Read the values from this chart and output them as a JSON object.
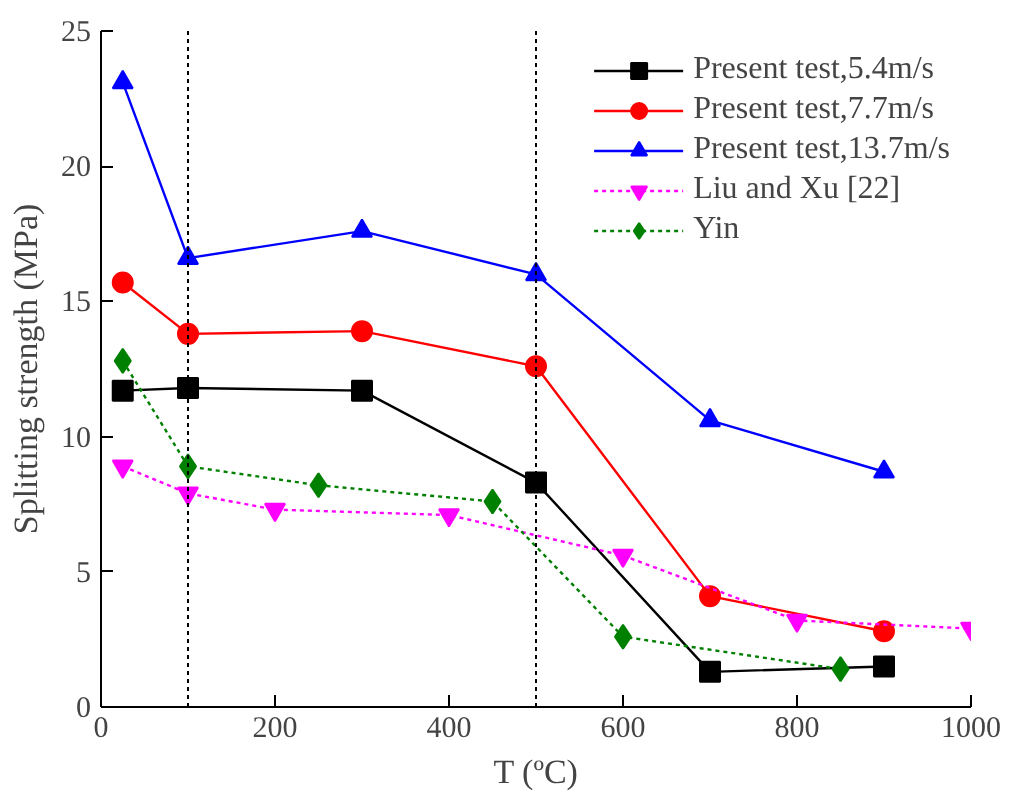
{
  "chart_data": {
    "type": "line",
    "xlabel": "T (ºC)",
    "ylabel": "Splitting strength (MPa)",
    "xlim": [
      0,
      1000
    ],
    "ylim": [
      0,
      25
    ],
    "xticks": [
      0,
      200,
      400,
      600,
      800,
      1000
    ],
    "yticks": [
      0,
      5,
      10,
      15,
      20,
      25
    ],
    "grid": false,
    "legend": "top right",
    "ref_lines": [
      {
        "axis": "x",
        "value": 100,
        "color": "#000000",
        "line_style": "dotted"
      },
      {
        "axis": "x",
        "value": 500,
        "color": "#000000",
        "line_style": "dotted"
      }
    ],
    "series": [
      {
        "name": "Present test,5.4m/s",
        "color": "#000000",
        "marker": "square",
        "line_style": "solid",
        "x": [
          25,
          100,
          300,
          500,
          700,
          900
        ],
        "values": [
          11.7,
          11.8,
          11.7,
          8.3,
          1.3,
          1.5
        ]
      },
      {
        "name": "Present test,7.7m/s",
        "color": "#ff0000",
        "marker": "circle",
        "line_style": "solid",
        "x": [
          25,
          100,
          300,
          500,
          700,
          900
        ],
        "values": [
          15.7,
          13.8,
          13.9,
          12.6,
          4.1,
          2.8
        ]
      },
      {
        "name": "Present test,13.7m/s",
        "color": "#0000ff",
        "marker": "triangle",
        "line_style": "solid",
        "x": [
          25,
          100,
          300,
          500,
          700,
          900
        ],
        "values": [
          23.1,
          16.6,
          17.6,
          16.0,
          10.6,
          8.7
        ]
      },
      {
        "name": "Liu and Xu [22]",
        "color": "#ff00ff",
        "marker": "triangle",
        "line_style": "dotted",
        "x": [
          25,
          100,
          200,
          400,
          600,
          800,
          1000
        ],
        "values": [
          8.9,
          7.9,
          7.3,
          7.1,
          5.6,
          3.2,
          2.9
        ]
      },
      {
        "name": "Yin",
        "color": "#008000",
        "marker": "diamond",
        "line_style": "dotted",
        "x": [
          25,
          100,
          250,
          450,
          600,
          850
        ],
        "values": [
          12.8,
          8.9,
          8.2,
          7.6,
          2.6,
          1.4
        ]
      }
    ]
  }
}
